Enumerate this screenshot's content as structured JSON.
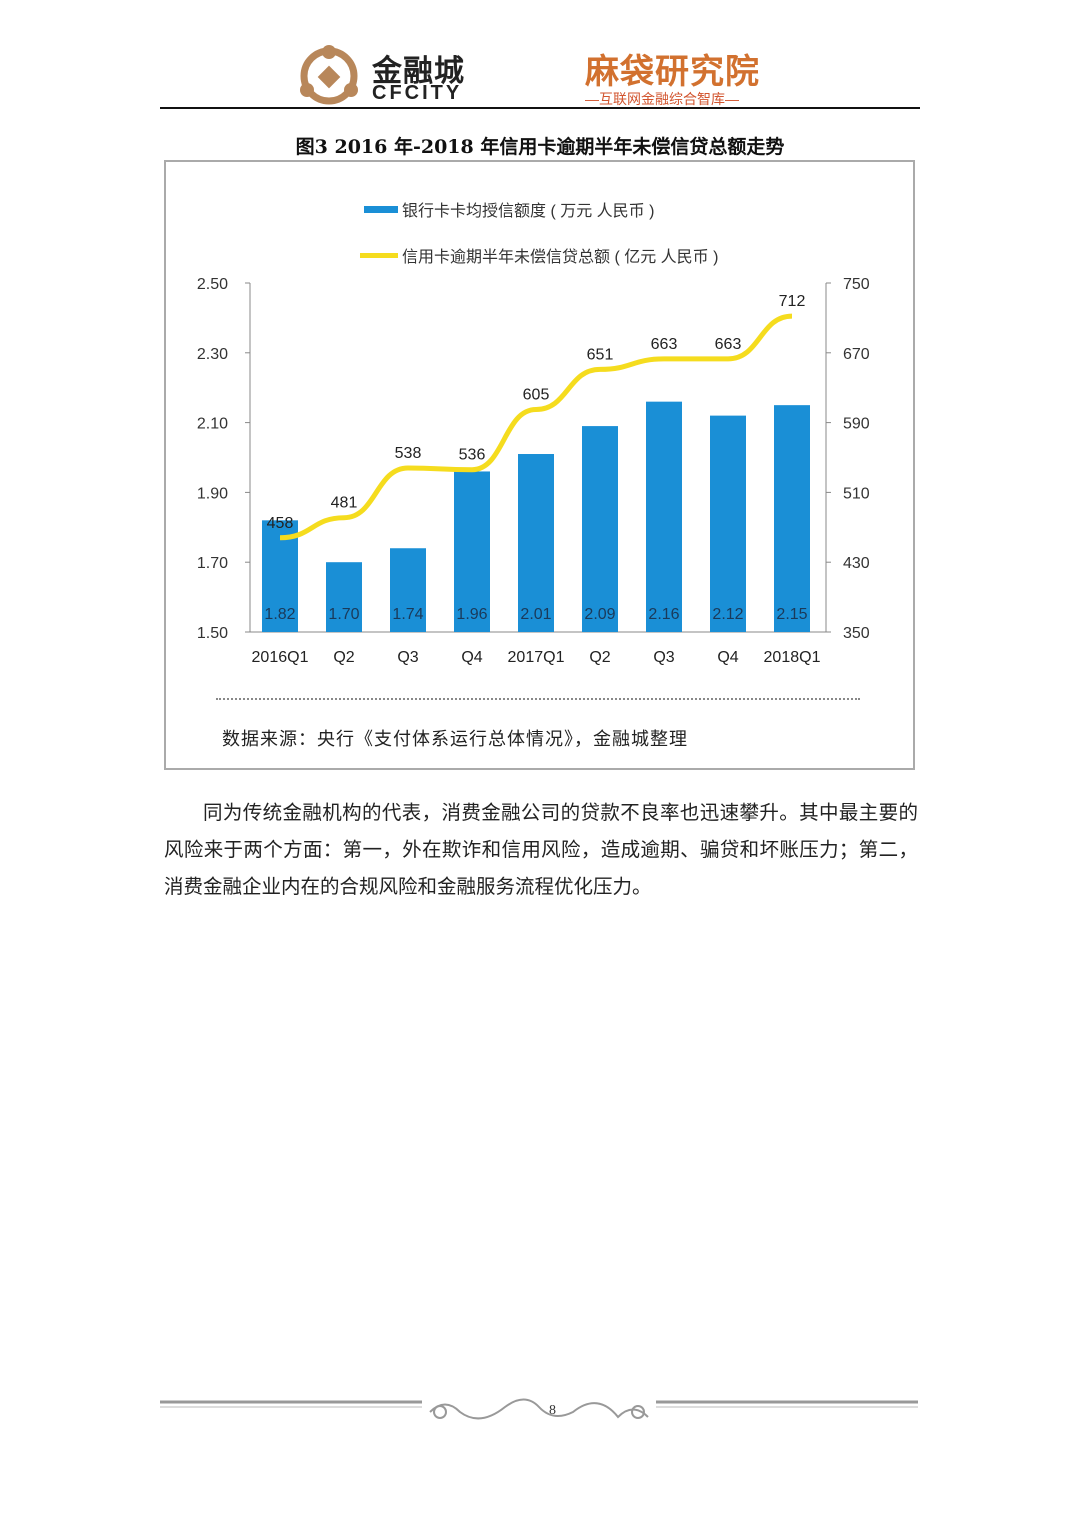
{
  "header": {
    "logo_left_cn": "金融城",
    "logo_left_en": "CFCITY",
    "logo_right_cn": "麻袋研究院",
    "logo_right_sub": "—互联网金融综合智库—"
  },
  "figure_title": "图3 2016 年-2018 年信用卡逾期半年未偿信贷总额走势",
  "chart_data": {
    "type": "bar+line",
    "categories": [
      "2016Q1",
      "Q2",
      "Q3",
      "Q4",
      "2017Q1",
      "Q2",
      "Q3",
      "Q4",
      "2018Q1"
    ],
    "series": [
      {
        "name": "银行卡卡均授信额度 ( 万元 人民币 )",
        "type": "bar",
        "axis": "left",
        "color": "#1a8fd6",
        "values": [
          1.82,
          1.7,
          1.74,
          1.96,
          2.01,
          2.09,
          2.16,
          2.12,
          2.15
        ],
        "labels": [
          "1.82",
          "1.70",
          "1.74",
          "1.96",
          "2.01",
          "2.09",
          "2.16",
          "2.12",
          "2.15"
        ]
      },
      {
        "name": "信用卡逾期半年未偿信贷总额 ( 亿元 人民币 )",
        "type": "line",
        "axis": "right",
        "color": "#f5dc1e",
        "values": [
          458,
          481,
          538,
          536,
          605,
          651,
          663,
          663,
          712
        ],
        "labels": [
          "458",
          "481",
          "538",
          "536",
          "605",
          "651",
          "663",
          "663",
          "712"
        ]
      }
    ],
    "left_axis": {
      "range": [
        1.5,
        2.5
      ],
      "ticks": [
        "1.50",
        "1.70",
        "1.90",
        "2.10",
        "2.30",
        "2.50"
      ]
    },
    "right_axis": {
      "range": [
        350,
        750
      ],
      "ticks": [
        "350",
        "430",
        "510",
        "590",
        "670",
        "750"
      ]
    },
    "legend_placement": "top-center",
    "grid": false
  },
  "source": "数据来源：央行《支付体系运行总体情况》，金融城整理",
  "paragraph": "同为传统金融机构的代表，消费金融公司的贷款不良率也迅速攀升。其中最主要的风险来于两个方面：第一，外在欺诈和信用风险，造成逾期、骗贷和坏账压力；第二，消费金融企业内在的合规风险和金融服务流程优化压力。",
  "page_number": "8"
}
